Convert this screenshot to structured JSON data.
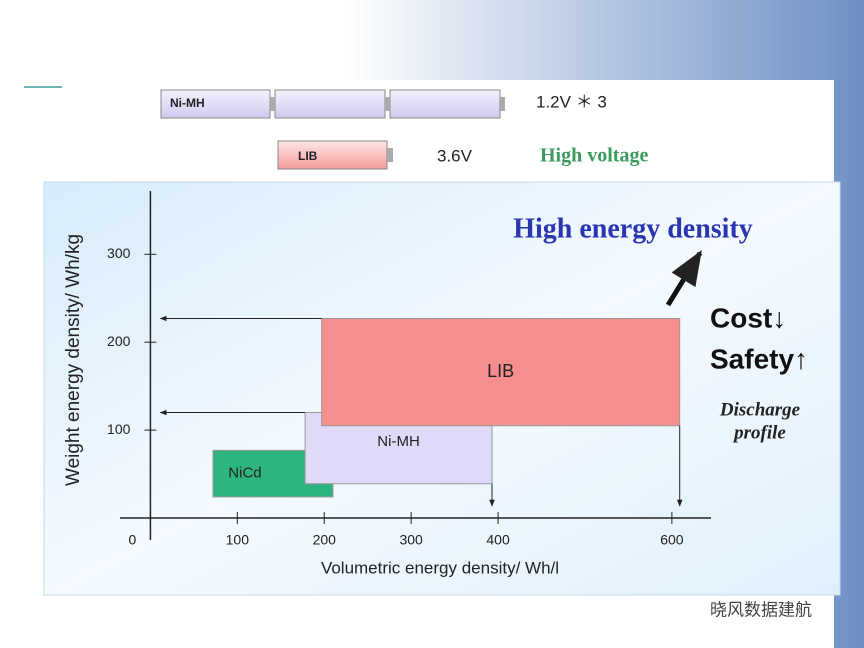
{
  "header": {
    "nimh_label": "Ni-MH",
    "nimh_voltage": "1.2V ＊ 3",
    "lib_label": "LIB",
    "lib_voltage": "3.6V",
    "high_voltage": "High voltage"
  },
  "chart_data": {
    "type": "range-box",
    "x_label": "Volumetric energy density/ Wh/l",
    "y_label": "Weight energy density/ Wh/kg",
    "xlim": [
      -35,
      645
    ],
    "ylim": [
      -25,
      372
    ],
    "xticks": [
      0,
      100,
      200,
      300,
      400,
      600
    ],
    "yticks": [
      100,
      200,
      300
    ],
    "series": [
      {
        "name": "NiCd",
        "color": "#2db57f",
        "xrange": [
          72,
          210
        ],
        "yrange": [
          24,
          77
        ]
      },
      {
        "name": "Ni-MH",
        "color": "#dedaf8",
        "xrange": [
          178,
          393
        ],
        "yrange": [
          39,
          120
        ]
      },
      {
        "name": "LIB",
        "color": "#f78e8e",
        "xrange": [
          197,
          609
        ],
        "yrange": [
          105,
          227
        ]
      }
    ],
    "annotations": [
      "High energy density",
      "Cost↓",
      "Safety↑",
      "Discharge",
      "profile"
    ]
  },
  "watermark": "晓风数据建航"
}
